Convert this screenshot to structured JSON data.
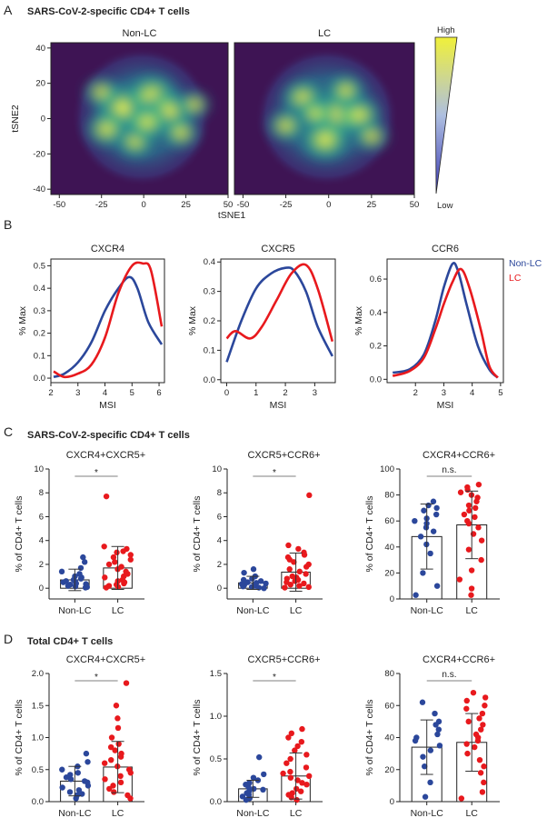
{
  "panels": {
    "A": "A",
    "B": "B",
    "C": "C",
    "D": "D"
  },
  "section_titles": {
    "A": "SARS-CoV-2-specific CD4+ T cells",
    "C": "SARS-CoV-2-specific CD4+ T cells",
    "D": "Total CD4+ T cells"
  },
  "colors": {
    "non_lc": "#2b479b",
    "lc": "#e8191d",
    "bar_edge": "#222222",
    "density_bg": "#3e1454"
  },
  "chart_data": [
    {
      "type": "heatmap",
      "id": "tsne-non-lc",
      "title": "Non-LC",
      "xlabel": "tSNE1",
      "ylabel": "tSNE2",
      "xlim": [
        -55,
        50
      ],
      "ylim": [
        -43,
        43
      ],
      "xticks": [
        -50,
        -25,
        0,
        25,
        50
      ],
      "yticks": [
        -40,
        -20,
        0,
        20,
        40
      ],
      "hotspots": [
        {
          "x": -12,
          "y": 6,
          "w": 1.0
        },
        {
          "x": 5,
          "y": 13,
          "w": 0.9
        },
        {
          "x": 15,
          "y": 4,
          "w": 0.85
        },
        {
          "x": -22,
          "y": -6,
          "w": 0.7
        },
        {
          "x": -5,
          "y": -13,
          "w": 0.6
        },
        {
          "x": 22,
          "y": -8,
          "w": 0.6
        },
        {
          "x": -25,
          "y": 15,
          "w": 0.55
        },
        {
          "x": 2,
          "y": -2,
          "w": 0.7
        },
        {
          "x": 30,
          "y": 8,
          "w": 0.5
        }
      ]
    },
    {
      "type": "heatmap",
      "id": "tsne-lc",
      "title": "LC",
      "xlabel": "",
      "ylabel": "",
      "xlim": [
        -55,
        50
      ],
      "ylim": [
        -43,
        43
      ],
      "xticks": [
        -50,
        -25,
        0,
        25,
        50
      ],
      "yticks": [],
      "hotspots": [
        {
          "x": 5,
          "y": 2,
          "w": 1.0
        },
        {
          "x": -2,
          "y": -12,
          "w": 0.85
        },
        {
          "x": 18,
          "y": 2,
          "w": 0.75
        },
        {
          "x": -15,
          "y": 12,
          "w": 0.7
        },
        {
          "x": -25,
          "y": -4,
          "w": 0.6
        },
        {
          "x": 25,
          "y": -10,
          "w": 0.55
        },
        {
          "x": 10,
          "y": 16,
          "w": 0.6
        },
        {
          "x": -8,
          "y": 3,
          "w": 0.55
        }
      ],
      "colorbar": {
        "high": "High",
        "low": "Low"
      }
    },
    {
      "type": "line",
      "id": "hist-cxcr4",
      "title": "CXCR4",
      "xlabel": "MSI",
      "ylabel": "% Max",
      "xlim": [
        2,
        6.2
      ],
      "ylim": [
        -0.02,
        0.53
      ],
      "xticks": [
        2,
        3,
        4,
        5,
        6
      ],
      "yticks": [
        0.0,
        0.1,
        0.2,
        0.3,
        0.4,
        0.5
      ],
      "series": [
        {
          "name": "Non-LC",
          "x": [
            2.1,
            2.5,
            3.0,
            3.5,
            4.0,
            4.5,
            4.9,
            5.2,
            5.6,
            6.1
          ],
          "y": [
            0.005,
            0.02,
            0.07,
            0.16,
            0.3,
            0.4,
            0.45,
            0.4,
            0.25,
            0.15
          ]
        },
        {
          "name": "LC",
          "x": [
            2.1,
            2.5,
            3.0,
            3.5,
            4.0,
            4.5,
            5.0,
            5.4,
            5.7,
            6.1
          ],
          "y": [
            0.03,
            0.005,
            0.02,
            0.06,
            0.18,
            0.38,
            0.5,
            0.51,
            0.48,
            0.23
          ]
        }
      ]
    },
    {
      "type": "line",
      "id": "hist-cxcr5",
      "title": "CXCR5",
      "xlabel": "MSI",
      "ylabel": "% Max",
      "xlim": [
        -0.2,
        3.7
      ],
      "ylim": [
        -0.01,
        0.41
      ],
      "xticks": [
        0,
        1,
        2,
        3
      ],
      "yticks": [
        0.0,
        0.1,
        0.2,
        0.3,
        0.4
      ],
      "series": [
        {
          "name": "Non-LC",
          "x": [
            0,
            0.5,
            1.0,
            1.5,
            2.0,
            2.3,
            2.7,
            3.1,
            3.6
          ],
          "y": [
            0.06,
            0.2,
            0.31,
            0.36,
            0.38,
            0.37,
            0.3,
            0.18,
            0.08
          ]
        },
        {
          "name": "LC",
          "x": [
            0,
            0.3,
            0.8,
            1.2,
            1.7,
            2.2,
            2.7,
            3.1,
            3.6
          ],
          "y": [
            0.14,
            0.165,
            0.14,
            0.18,
            0.27,
            0.36,
            0.39,
            0.31,
            0.13
          ]
        }
      ]
    },
    {
      "type": "line",
      "id": "hist-ccr6",
      "title": "CCR6",
      "xlabel": "MSI",
      "ylabel": "% Max",
      "xlim": [
        1,
        5.1
      ],
      "ylim": [
        -0.02,
        0.72
      ],
      "xticks": [
        2,
        3,
        4,
        5
      ],
      "yticks": [
        0.0,
        0.2,
        0.4,
        0.6
      ],
      "series": [
        {
          "name": "Non-LC",
          "x": [
            1.2,
            1.8,
            2.3,
            2.7,
            3.0,
            3.3,
            3.5,
            3.8,
            4.2,
            4.6,
            4.9
          ],
          "y": [
            0.04,
            0.06,
            0.15,
            0.35,
            0.55,
            0.69,
            0.65,
            0.45,
            0.2,
            0.06,
            0.01
          ]
        },
        {
          "name": "LC",
          "x": [
            1.2,
            1.8,
            2.3,
            2.7,
            3.0,
            3.3,
            3.6,
            3.9,
            4.3,
            4.6,
            4.9
          ],
          "y": [
            0.02,
            0.05,
            0.13,
            0.3,
            0.45,
            0.58,
            0.66,
            0.55,
            0.3,
            0.08,
            0.01
          ]
        }
      ],
      "legend": [
        "Non-LC",
        "LC"
      ],
      "legend_position": "top-right"
    },
    {
      "type": "bar",
      "id": "c1",
      "title": "CXCR4+CXCR5+",
      "ylabel": "% of CD4+ T cells",
      "categories": [
        "Non-LC",
        "LC"
      ],
      "ylim": [
        -0.9,
        10
      ],
      "yticks": [
        0,
        2,
        4,
        6,
        8,
        10
      ],
      "means": [
        0.7,
        1.7
      ],
      "sd": [
        0.9,
        1.8
      ],
      "significance": "*",
      "points": [
        [
          0.05,
          0.1,
          0.15,
          0.2,
          0.3,
          0.35,
          0.4,
          0.5,
          0.55,
          0.6,
          0.7,
          0.8,
          0.9,
          1.0,
          1.2,
          1.4,
          1.7,
          2.2,
          2.6
        ],
        [
          0.05,
          0.1,
          0.2,
          0.3,
          0.4,
          0.5,
          0.6,
          0.7,
          0.9,
          1.0,
          1.2,
          1.4,
          1.6,
          1.8,
          2.0,
          2.2,
          2.4,
          2.6,
          2.8,
          3.0,
          3.1,
          3.3,
          3.5,
          7.7
        ]
      ]
    },
    {
      "type": "bar",
      "id": "c2",
      "title": "CXCR5+CCR6+",
      "ylabel": "% of CD4+ T cells",
      "categories": [
        "Non-LC",
        "LC"
      ],
      "ylim": [
        -0.9,
        10
      ],
      "yticks": [
        0,
        2,
        4,
        6,
        8,
        10
      ],
      "means": [
        0.45,
        1.35
      ],
      "sd": [
        0.55,
        1.6
      ],
      "significance": "*",
      "points": [
        [
          0.0,
          0.05,
          0.1,
          0.15,
          0.2,
          0.25,
          0.3,
          0.35,
          0.4,
          0.45,
          0.5,
          0.6,
          0.7,
          0.8,
          1.0,
          1.3,
          1.6
        ],
        [
          0.05,
          0.1,
          0.2,
          0.3,
          0.4,
          0.5,
          0.6,
          0.7,
          0.8,
          0.9,
          1.0,
          1.2,
          1.4,
          1.6,
          1.8,
          2.0,
          2.2,
          2.4,
          2.6,
          2.8,
          3.0,
          3.3,
          3.6,
          7.8
        ]
      ]
    },
    {
      "type": "bar",
      "id": "c3",
      "title": "CXCR4+CCR6+",
      "ylabel": "% of CD4+ T cells",
      "categories": [
        "Non-LC",
        "LC"
      ],
      "ylim": [
        0,
        100
      ],
      "yticks": [
        0,
        20,
        40,
        60,
        80,
        100
      ],
      "means": [
        48,
        57
      ],
      "sd": [
        25,
        26
      ],
      "significance": "n.s.",
      "points": [
        [
          3,
          10,
          20,
          35,
          42,
          48,
          52,
          55,
          58,
          60,
          62,
          65,
          68,
          70,
          72,
          75
        ],
        [
          3,
          8,
          15,
          22,
          30,
          38,
          45,
          50,
          55,
          58,
          60,
          63,
          65,
          68,
          70,
          72,
          75,
          78,
          80,
          82,
          84,
          86,
          88
        ]
      ]
    },
    {
      "type": "bar",
      "id": "d1",
      "title": "CXCR4+CXCR5+",
      "ylabel": "% of CD4+ T cells",
      "categories": [
        "Non-LC",
        "LC"
      ],
      "ylim": [
        0,
        2.0
      ],
      "yticks": [
        0.0,
        0.5,
        1.0,
        1.5,
        2.0
      ],
      "means": [
        0.32,
        0.54
      ],
      "sd": [
        0.23,
        0.4
      ],
      "significance": "*",
      "points": [
        [
          0.05,
          0.1,
          0.12,
          0.15,
          0.18,
          0.22,
          0.25,
          0.3,
          0.32,
          0.35,
          0.38,
          0.42,
          0.45,
          0.5,
          0.55,
          0.62,
          0.75
        ],
        [
          0.05,
          0.1,
          0.15,
          0.2,
          0.25,
          0.3,
          0.35,
          0.4,
          0.45,
          0.5,
          0.55,
          0.6,
          0.65,
          0.7,
          0.75,
          0.8,
          0.85,
          0.9,
          1.0,
          1.15,
          1.3,
          1.5,
          1.85
        ]
      ]
    },
    {
      "type": "bar",
      "id": "d2",
      "title": "CXCR5+CCR6+",
      "ylabel": "% of CD4+ T cells",
      "categories": [
        "Non-LC",
        "LC"
      ],
      "ylim": [
        0,
        1.5
      ],
      "yticks": [
        0.0,
        0.5,
        1.0,
        1.5
      ],
      "means": [
        0.15,
        0.3
      ],
      "sd": [
        0.1,
        0.27
      ],
      "significance": "*",
      "points": [
        [
          0.02,
          0.04,
          0.06,
          0.08,
          0.1,
          0.12,
          0.14,
          0.15,
          0.17,
          0.2,
          0.22,
          0.25,
          0.28,
          0.32,
          0.52
        ],
        [
          0.02,
          0.05,
          0.08,
          0.1,
          0.12,
          0.15,
          0.2,
          0.22,
          0.25,
          0.28,
          0.3,
          0.33,
          0.35,
          0.4,
          0.45,
          0.5,
          0.55,
          0.6,
          0.65,
          0.7,
          0.75,
          0.8,
          0.85
        ]
      ]
    },
    {
      "type": "bar",
      "id": "d3",
      "title": "CXCR4+CCR6+",
      "ylabel": "% of CD4+ T cells",
      "categories": [
        "Non-LC",
        "LC"
      ],
      "ylim": [
        0,
        80
      ],
      "yticks": [
        0,
        20,
        40,
        60,
        80
      ],
      "means": [
        34,
        37
      ],
      "sd": [
        17,
        18
      ],
      "significance": "n.s.",
      "points": [
        [
          3,
          12,
          22,
          28,
          32,
          35,
          38,
          40,
          42,
          45,
          48,
          50,
          55,
          62
        ],
        [
          2,
          6,
          12,
          18,
          22,
          26,
          30,
          34,
          36,
          38,
          40,
          42,
          45,
          48,
          50,
          52,
          55,
          58,
          60,
          63,
          65,
          68
        ]
      ]
    }
  ]
}
